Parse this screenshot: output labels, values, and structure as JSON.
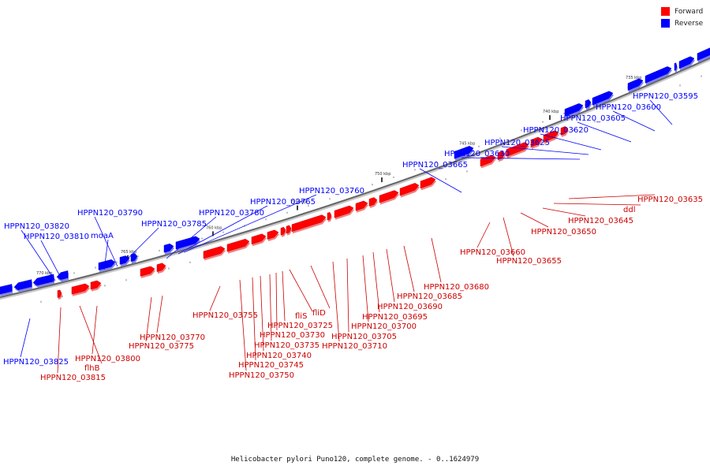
{
  "legend": {
    "forward_label": "Forward",
    "reverse_label": "Reverse",
    "forward_color": "#ff0000",
    "reverse_color": "#0000ff"
  },
  "footer": "Helicobacter pylori Puno120, complete genome. - 0..1624979",
  "ticks": [
    "770 kbp",
    "765 kbp",
    "760 kbp",
    "755 kbp",
    "750 kbp",
    "745 kbp",
    "740 kbp",
    "735 kbp"
  ],
  "reverse_genes": [
    "HPPN120_03825",
    "HPPN120_03820",
    "HPPN120_03810",
    "moaA",
    "HPPN120_03790",
    "HPPN120_03785",
    "HPPN120_03780",
    "HPPN120_03765",
    "HPPN120_03760",
    "HPPN120_03665",
    "HPPN120_03630",
    "HPPN120_03625",
    "HPPN120_03620",
    "HPPN120_03605",
    "HPPN120_03600",
    "HPPN120_03595"
  ],
  "forward_genes": [
    "HPPN120_03815",
    "flhB",
    "HPPN120_03800",
    "HPPN120_03775",
    "HPPN120_03770",
    "HPPN120_03755",
    "HPPN120_03750",
    "HPPN120_03745",
    "HPPN120_03740",
    "HPPN120_03735",
    "HPPN120_03730",
    "HPPN120_03725",
    "fliS",
    "fliD",
    "HPPN120_03710",
    "HPPN120_03705",
    "HPPN120_03700",
    "HPPN120_03695",
    "HPPN120_03690",
    "HPPN120_03685",
    "HPPN120_03680",
    "HPPN120_03660",
    "HPPN120_03655",
    "HPPN120_03650",
    "HPPN120_03645",
    "ddl",
    "HPPN120_03635"
  ]
}
